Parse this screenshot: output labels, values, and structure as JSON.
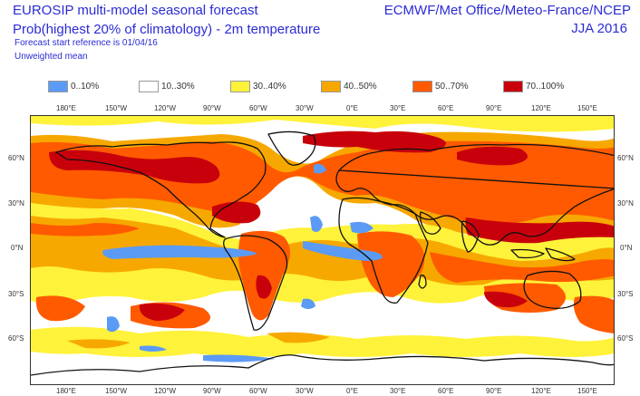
{
  "header": {
    "title_line1": "EUROSIP multi-model seasonal forecast",
    "title_line2": "Prob(highest 20% of climatology) - 2m temperature",
    "reference": "Forecast start reference is 01/04/16",
    "weighting": "Unweighted mean",
    "models": "ECMWF/Met Office/Meteo-France/NCEP",
    "season": "JJA 2016"
  },
  "legend": [
    {
      "label": "0..10%",
      "color": "#5b9bf5"
    },
    {
      "label": "10..30%",
      "color": "#ffffff"
    },
    {
      "label": "30..40%",
      "color": "#fff23a"
    },
    {
      "label": "40..50%",
      "color": "#f7a800"
    },
    {
      "label": "50..70%",
      "color": "#ff5a00"
    },
    {
      "label": "70..100%",
      "color": "#c8000c"
    }
  ],
  "map": {
    "top_lon_labels": [
      "180°E",
      "150°W",
      "120°W",
      "90°W",
      "60°W",
      "30°W",
      "0°E",
      "30°E",
      "60°E",
      "90°E",
      "120°E",
      "150°E"
    ],
    "bottom_lon_labels": [
      "180°E",
      "150°W",
      "120°W",
      "90°W",
      "60°W",
      "30°W",
      "0°E",
      "30°E",
      "60°E",
      "90°E",
      "120°E",
      "150°E"
    ],
    "left_lat_labels": [
      "60°N",
      "30°N",
      "0°N",
      "30°S",
      "60°S"
    ],
    "right_lat_labels": [
      "60°N",
      "30°N",
      "0°N",
      "30°S",
      "60°S"
    ]
  }
}
